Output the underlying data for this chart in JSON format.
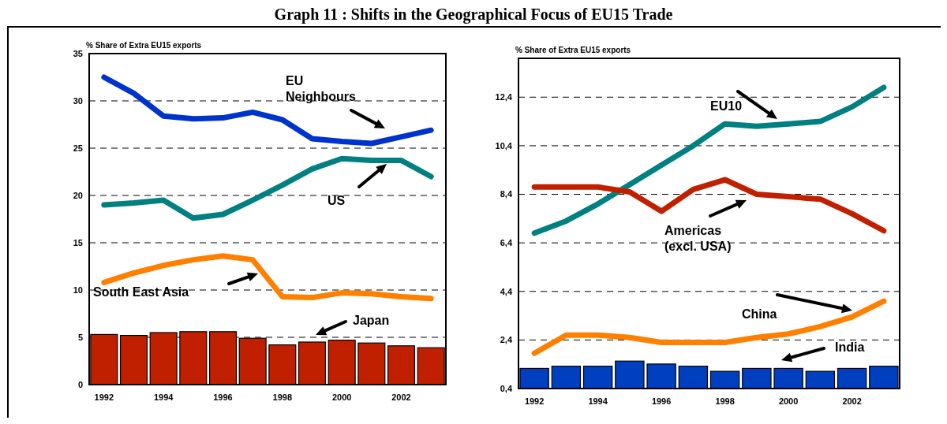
{
  "chart_data": [
    {
      "type": "line",
      "title": "Graph 11 : Shifts in the Geographical Focus of EU15 Trade",
      "ylabel": "% Share of Extra EU15 exports",
      "categories": [
        "1992",
        null,
        "1994",
        null,
        "1996",
        null,
        "1998",
        null,
        "2000",
        null,
        "2002",
        null
      ],
      "ylim": [
        0,
        35
      ],
      "yticks": [
        0,
        5,
        10,
        15,
        20,
        25,
        30,
        35
      ],
      "grid": "y",
      "series": [
        {
          "name": "Japan",
          "type": "bar",
          "color": "#c02000",
          "values": [
            5.3,
            5.2,
            5.5,
            5.6,
            5.6,
            4.9,
            4.2,
            4.5,
            4.7,
            4.4,
            4.1,
            3.9
          ]
        },
        {
          "name": "EU Neighbours",
          "color": "#0033cc",
          "values": [
            32.5,
            30.8,
            28.4,
            28.1,
            28.2,
            28.8,
            28.0,
            26.0,
            25.7,
            25.5,
            26.2,
            26.9
          ]
        },
        {
          "name": "US",
          "color": "#008080",
          "values": [
            19.0,
            19.2,
            19.5,
            17.6,
            18.0,
            19.5,
            21.1,
            22.8,
            23.9,
            23.7,
            23.7,
            22.0
          ]
        },
        {
          "name": "South East Asia",
          "color": "#ff8000",
          "values": [
            10.8,
            11.8,
            12.6,
            13.2,
            13.6,
            13.2,
            9.3,
            9.2,
            9.7,
            9.6,
            9.3,
            9.1
          ]
        }
      ]
    },
    {
      "type": "line",
      "ylabel": "% Share of Extra EU15 exports",
      "categories": [
        "1992",
        null,
        "1994",
        null,
        "1996",
        null,
        "1998",
        null,
        "2000",
        null,
        "2002",
        null
      ],
      "ylim": [
        0.4,
        14.0
      ],
      "yticks": [
        {
          "value": 0.4,
          "label": "0,4"
        },
        {
          "value": 2.4,
          "label": "2,4"
        },
        {
          "value": 4.4,
          "label": "4,4"
        },
        {
          "value": 6.4,
          "label": "6,4"
        },
        {
          "value": 8.4,
          "label": "8,4"
        },
        {
          "value": 10.4,
          "label": "10,4"
        },
        {
          "value": 12.4,
          "label": "12,4"
        }
      ],
      "grid": "y",
      "series": [
        {
          "name": "India",
          "type": "bar",
          "color": "#0040c0",
          "values": [
            1.23,
            1.32,
            1.32,
            1.53,
            1.41,
            1.32,
            1.11,
            1.23,
            1.23,
            1.11,
            1.23,
            1.32
          ]
        },
        {
          "name": "EU10",
          "color": "#008080",
          "values": [
            6.8,
            7.3,
            8.0,
            8.8,
            9.6,
            10.4,
            11.3,
            11.2,
            11.3,
            11.4,
            12.0,
            12.8
          ]
        },
        {
          "name": "Americas (excl. USA)",
          "color": "#c02000",
          "values": [
            8.7,
            8.7,
            8.7,
            8.5,
            7.7,
            8.6,
            9.0,
            8.4,
            8.3,
            8.2,
            7.6,
            6.9
          ]
        },
        {
          "name": "China",
          "color": "#ff8000",
          "values": [
            1.85,
            2.6,
            2.6,
            2.5,
            2.3,
            2.3,
            2.3,
            2.5,
            2.65,
            2.95,
            3.35,
            4.0
          ]
        }
      ]
    }
  ]
}
